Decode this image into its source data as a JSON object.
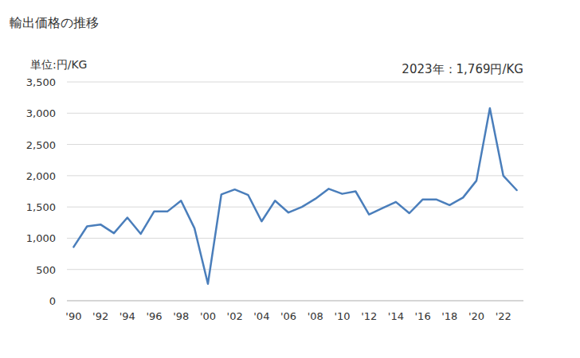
{
  "chart_data": {
    "type": "line",
    "title": "輸出価格の推移",
    "y_label": "単位:円/KG",
    "annotation": "2023年：1,769円/KG",
    "categories": [
      "'90",
      null,
      "'92",
      null,
      "'94",
      null,
      "'96",
      null,
      "'98",
      null,
      "'00",
      null,
      "'02",
      null,
      "'04",
      null,
      "'06",
      null,
      "'08",
      null,
      "'10",
      null,
      "'12",
      null,
      "'14",
      null,
      "'16",
      null,
      "'18",
      null,
      "'20",
      null,
      "'22",
      null
    ],
    "values": [
      860,
      1190,
      1220,
      1080,
      1330,
      1070,
      1430,
      1430,
      1600,
      1160,
      270,
      1700,
      1780,
      1690,
      1270,
      1600,
      1410,
      1500,
      1630,
      1790,
      1710,
      1750,
      1380,
      1480,
      1580,
      1400,
      1620,
      1620,
      1530,
      1650,
      1920,
      3080,
      2000,
      1769
    ],
    "color": "#4a7ebb",
    "ylim": [
      0,
      3500
    ],
    "yticks": [
      0,
      500,
      {
        "value": 1000,
        "label": "1,000"
      },
      {
        "value": 1500,
        "label": "1,500"
      },
      {
        "value": 2000,
        "label": "2,000"
      },
      {
        "value": 2500,
        "label": "2,500"
      },
      {
        "value": 3000,
        "label": "3,000"
      },
      {
        "value": 3500,
        "label": "3,500"
      }
    ],
    "grid": true
  }
}
